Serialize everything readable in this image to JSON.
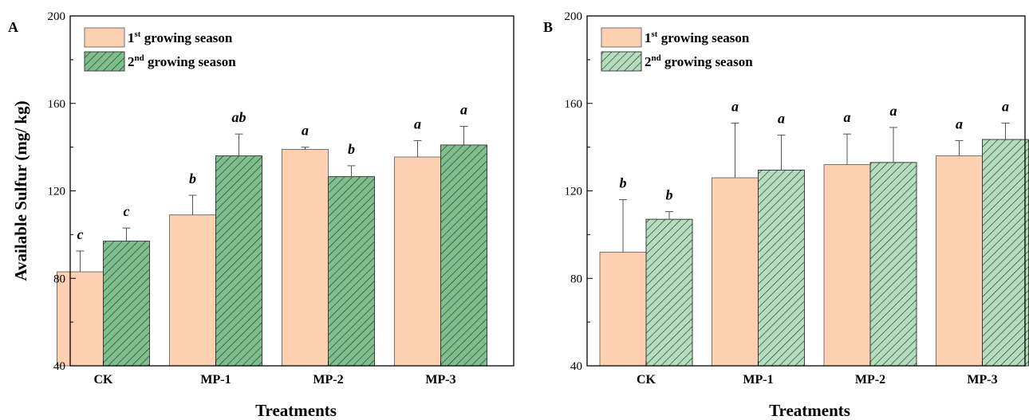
{
  "chart_data": [
    {
      "type": "bar",
      "panel": "A",
      "categories": [
        "CK",
        "MP-1",
        "MP-2",
        "MP-3"
      ],
      "xlabel": "Treatments",
      "ylabel": "Available Sulfur (mg/ kg)",
      "ylim": [
        40,
        200
      ],
      "yticks": [
        40,
        80,
        120,
        160,
        200
      ],
      "legend_position": "top-left",
      "series": [
        {
          "name_base": "1",
          "name_sup": "st",
          "name_rest": " growing season",
          "color": "#fdd0b1",
          "hatch": false,
          "values": [
            83,
            109,
            139,
            135.5
          ],
          "errors": [
            9.5,
            9,
            1,
            7.5
          ],
          "letters": [
            "c",
            "b",
            "a",
            "a"
          ]
        },
        {
          "name_base": "2",
          "name_sup": "nd",
          "name_rest": " growing season",
          "color": "#7fbf8e",
          "hatch": true,
          "values": [
            97,
            136,
            126.5,
            141
          ],
          "errors": [
            6,
            10,
            5,
            8.5
          ],
          "letters": [
            "c",
            "ab",
            "b",
            "a"
          ]
        }
      ]
    },
    {
      "type": "bar",
      "panel": "B",
      "categories": [
        "CK",
        "MP-1",
        "MP-2",
        "MP-3"
      ],
      "xlabel": "Treatments",
      "ylabel": "",
      "ylim": [
        40,
        200
      ],
      "yticks": [
        40,
        80,
        120,
        160,
        200
      ],
      "legend_position": "top-left",
      "series": [
        {
          "name_base": "1",
          "name_sup": "st",
          "name_rest": " growing season",
          "color": "#fdd0b1",
          "hatch": false,
          "values": [
            92,
            126,
            132,
            136
          ],
          "errors": [
            24,
            25,
            14,
            7
          ],
          "letters": [
            "b",
            "a",
            "a",
            "a"
          ]
        },
        {
          "name_base": "2",
          "name_sup": "nd",
          "name_rest": " growing season",
          "color": "#b5dcbd",
          "hatch": true,
          "values": [
            107,
            129.5,
            133,
            143.5
          ],
          "errors": [
            3.5,
            16,
            16,
            7.5
          ],
          "letters": [
            "b",
            "a",
            "a",
            "a"
          ]
        }
      ]
    }
  ]
}
